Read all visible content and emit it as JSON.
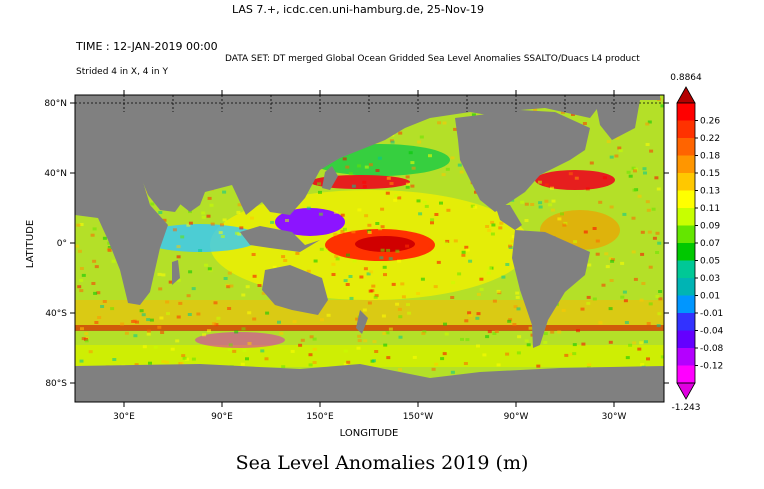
{
  "header": {
    "title": "LAS 7.+, icdc.cen.uni-hamburg.de, 25-Nov-19",
    "time": "TIME : 12-JAN-2019 00:00",
    "dataset": "DATA SET: DT merged Global Ocean Gridded Sea Level Anomalies SSALTO/Duacs L4 product",
    "strided": "Strided 4 in X, 4 in Y"
  },
  "caption": "Sea Level Anomalies 2019 (m)",
  "colors": {
    "land": "#808080",
    "background": "#ffffff"
  },
  "chart_data": {
    "type": "heatmap",
    "xlabel": "LONGITUDE",
    "ylabel": "LATITUDE",
    "x_ticks": [
      "30°E",
      "90°E",
      "150°E",
      "150°W",
      "90°W",
      "30°W"
    ],
    "y_ticks": [
      "80°N",
      "40°N",
      "0°",
      "40°S",
      "80°S"
    ],
    "grid": true,
    "colorbar": {
      "max_label": "0.8864",
      "min_label": "-1.243",
      "levels": [
        "0.26",
        "0.22",
        "0.18",
        "0.15",
        "0.13",
        "0.11",
        "0.09",
        "0.07",
        "0.05",
        "0.03",
        "0.01",
        "-0.01",
        "-0.04",
        "-0.08",
        "-0.12"
      ],
      "colors": [
        "#ff0000",
        "#ff3200",
        "#ff6400",
        "#ff9600",
        "#ffc800",
        "#ffff00",
        "#c8ff00",
        "#64e600",
        "#00c800",
        "#00c896",
        "#00b4b4",
        "#0096ff",
        "#3232ff",
        "#6400ff",
        "#b400ff",
        "#ff00ff"
      ],
      "top_color": "#b40000",
      "bottom_color": "#e000e0"
    }
  }
}
